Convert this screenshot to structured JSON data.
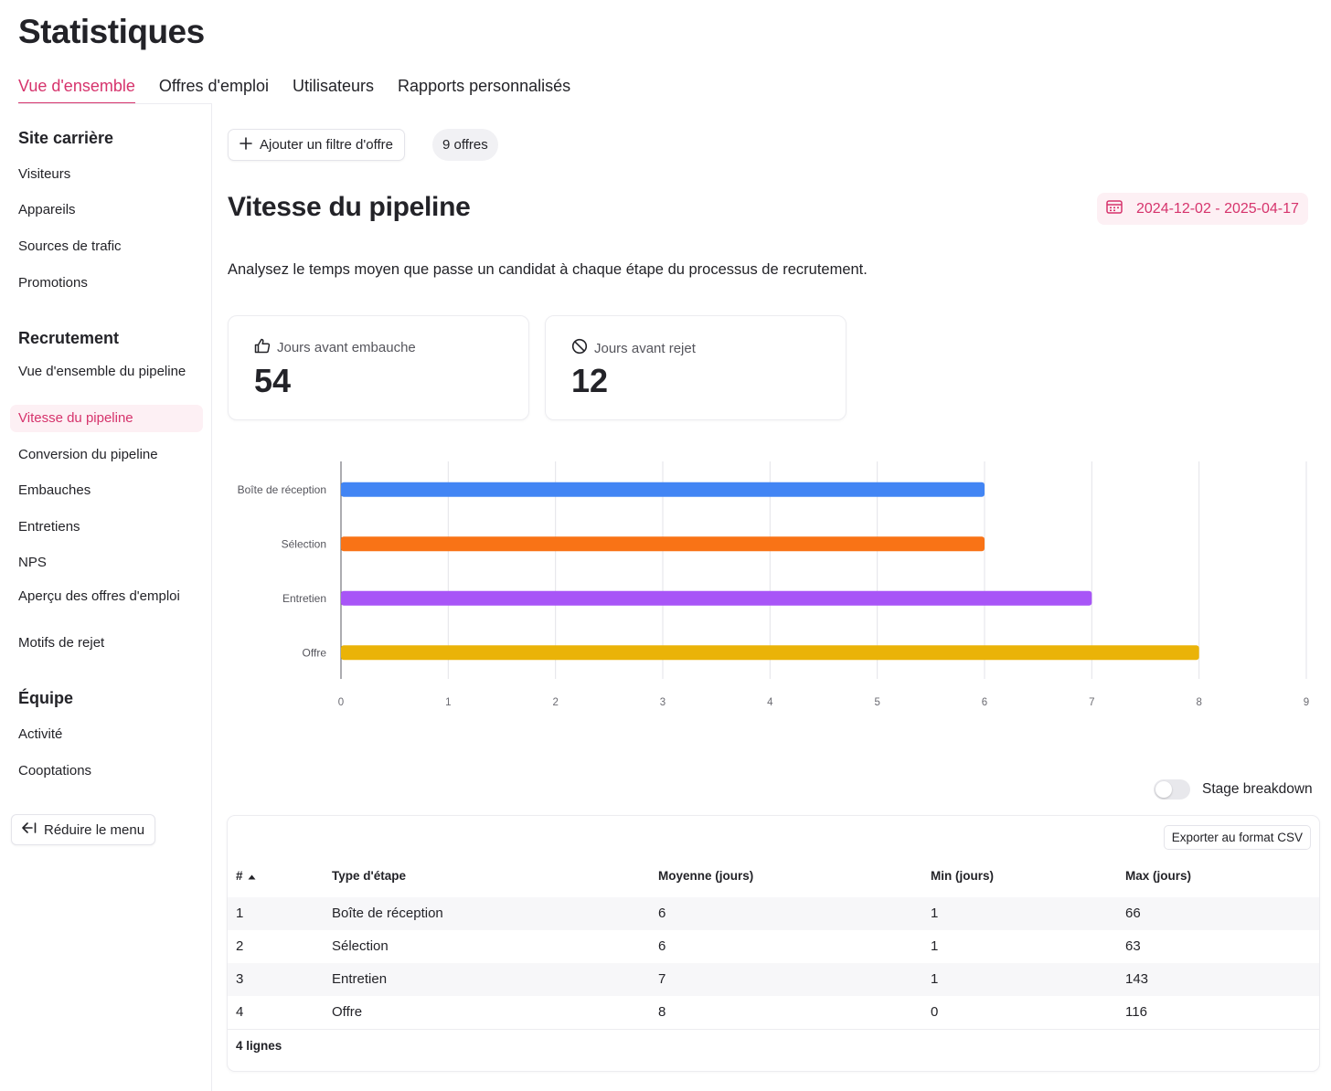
{
  "page": {
    "title": "Statistiques"
  },
  "tabs": [
    {
      "label": "Vue d'ensemble"
    },
    {
      "label": "Offres d'emploi"
    },
    {
      "label": "Utilisateurs"
    },
    {
      "label": "Rapports personnalisés"
    }
  ],
  "sidebar": {
    "sections": [
      {
        "title": "Site carrière",
        "items": [
          "Visiteurs",
          "Appareils",
          "Sources de trafic",
          "Promotions"
        ]
      },
      {
        "title": "Recrutement",
        "items": [
          "Vue d'ensemble du pipeline",
          "Vitesse du pipeline",
          "Conversion du pipeline",
          "Embauches",
          "Entretiens",
          "NPS",
          "Aperçu des offres d'emploi",
          "Motifs de rejet"
        ]
      },
      {
        "title": "Équipe",
        "items": [
          "Activité",
          "Cooptations"
        ]
      }
    ],
    "active_item": "Vitesse du pipeline",
    "collapse_label": "Réduire le menu"
  },
  "filters": {
    "add_label": "Ajouter un filtre d'offre",
    "count_label": "9 offres"
  },
  "section": {
    "title": "Vitesse du pipeline",
    "date_range": "2024-12-02 - 2025-04-17",
    "description": "Analysez le temps moyen que passe un candidat à chaque étape du processus de recrutement."
  },
  "kpis": [
    {
      "label": "Jours avant embauche",
      "value": "54",
      "icon": "thumbs-up-icon"
    },
    {
      "label": "Jours avant rejet",
      "value": "12",
      "icon": "ban-icon"
    }
  ],
  "chart_data": {
    "type": "bar",
    "orientation": "horizontal",
    "categories": [
      "Boîte de réception",
      "Sélection",
      "Entretien",
      "Offre"
    ],
    "values": [
      6,
      6,
      7,
      8
    ],
    "colors": [
      "#4285f4",
      "#f97316",
      "#a855f7",
      "#eab308"
    ],
    "xlim": [
      0,
      9
    ],
    "xticks": [
      0,
      1,
      2,
      3,
      4,
      5,
      6,
      7,
      8,
      9
    ],
    "grid": true,
    "title": "",
    "xlabel": "",
    "ylabel": ""
  },
  "toggle": {
    "label": "Stage breakdown",
    "on": false
  },
  "table": {
    "export_label": "Exporter au format CSV",
    "columns": [
      "#",
      "Type d'étape",
      "Moyenne (jours)",
      "Min (jours)",
      "Max (jours)"
    ],
    "rows": [
      [
        "1",
        "Boîte de réception",
        "6",
        "1",
        "66"
      ],
      [
        "2",
        "Sélection",
        "6",
        "1",
        "63"
      ],
      [
        "3",
        "Entretien",
        "7",
        "1",
        "143"
      ],
      [
        "4",
        "Offre",
        "8",
        "0",
        "116"
      ]
    ],
    "footer": "4 lignes"
  },
  "colors": {
    "accent": "#d6336c",
    "accent_bg": "#fdf0f4"
  }
}
